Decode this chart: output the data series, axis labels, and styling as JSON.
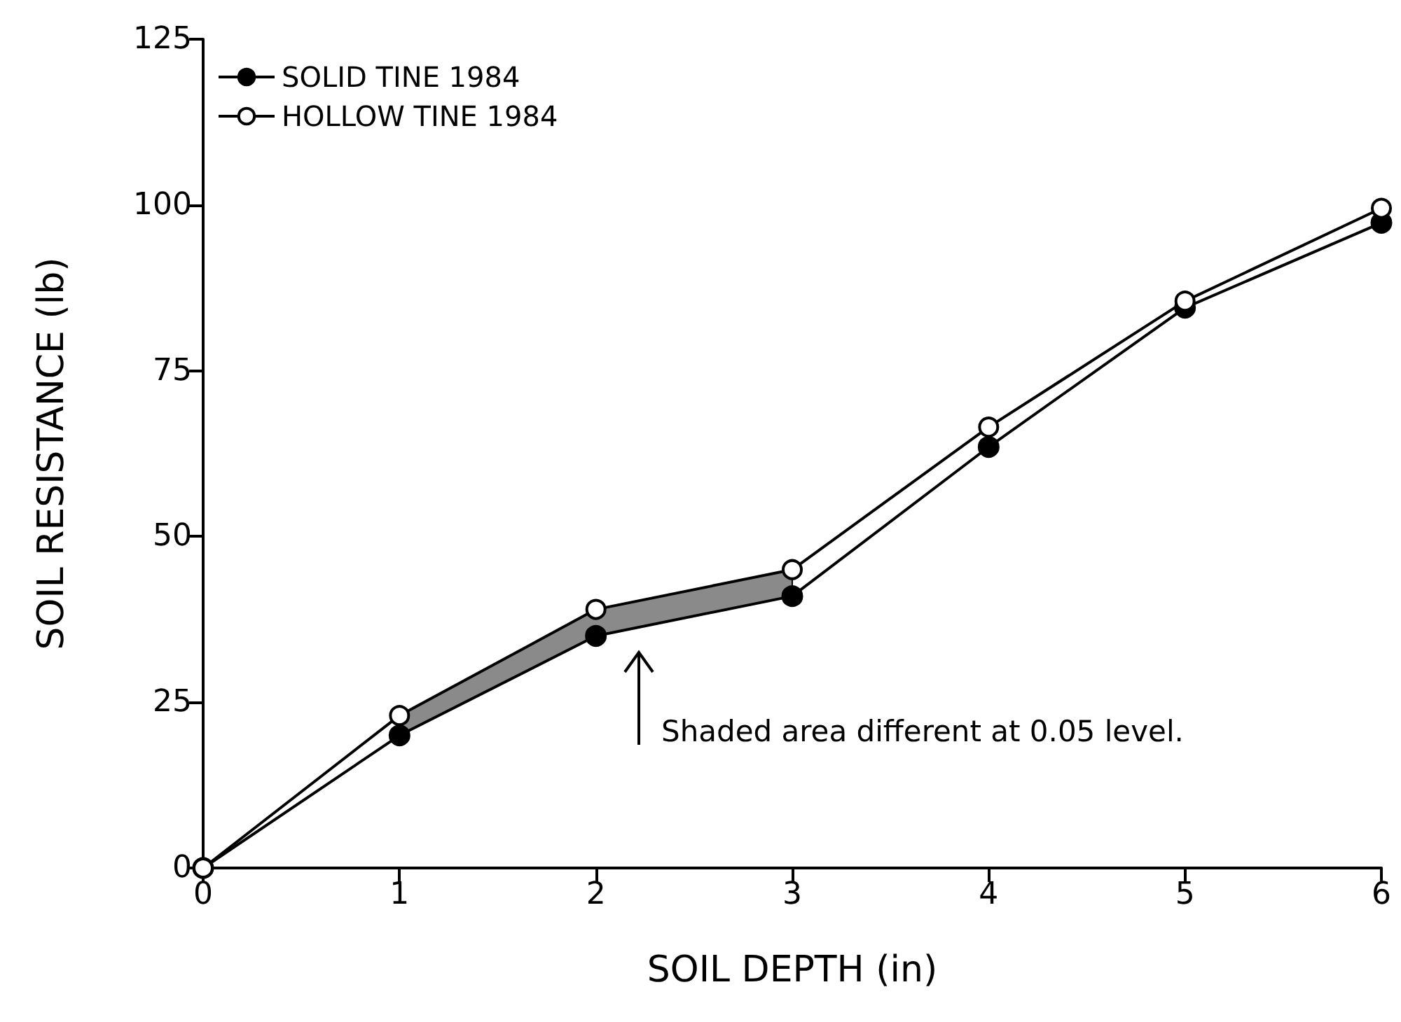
{
  "chart_data": {
    "type": "line",
    "xlabel": "SOIL DEPTH (in)",
    "ylabel": "SOIL RESISTANCE (lb)",
    "x": [
      0,
      1,
      2,
      3,
      4,
      5,
      6
    ],
    "series": [
      {
        "name": "SOLID TINE 1984",
        "color": "#000000",
        "marker": "circle",
        "values": [
          0,
          20,
          35,
          41,
          63.5,
          84.5,
          97.3
        ],
        "lower": [
          null,
          20,
          35,
          41,
          null,
          null,
          null
        ],
        "upper": [
          null,
          23,
          39,
          45,
          null,
          null,
          null
        ]
      },
      {
        "name": "HOLLOW TINE 1984",
        "color": "#000000",
        "marker": "circle_open",
        "values": [
          0,
          23,
          39,
          45,
          66.5,
          85.5,
          99.5
        ]
      }
    ],
    "annotations": [
      "Shaded area different at 0.05 level."
    ],
    "xlim": [
      0,
      6
    ],
    "xticks": [
      0,
      1,
      2,
      3,
      4,
      5,
      6
    ],
    "ylim": [
      0,
      125
    ],
    "yticks": [
      0,
      25,
      50,
      75,
      100,
      125
    ],
    "grid": false,
    "legend": "top left",
    "line_style": "solid"
  }
}
